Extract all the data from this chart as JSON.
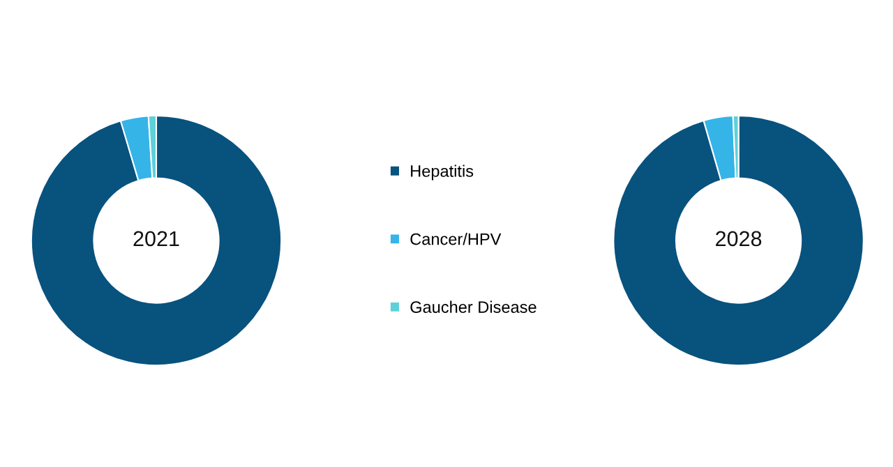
{
  "chart_data": {
    "type": "donut",
    "categories": [
      "Hepatitis",
      "Cancer/HPV",
      "Gaucher Disease"
    ],
    "legend": "right",
    "series": [
      {
        "name": "2021",
        "values": [
          95.4,
          3.6,
          1.0
        ],
        "colors": [
          "#08527e",
          "#35b4e8",
          "#5ed0d8"
        ]
      },
      {
        "name": "2028",
        "values": [
          95.5,
          3.8,
          0.7
        ],
        "colors": [
          "#08527e",
          "#35b4e8",
          "#5ed0d8"
        ]
      }
    ]
  }
}
